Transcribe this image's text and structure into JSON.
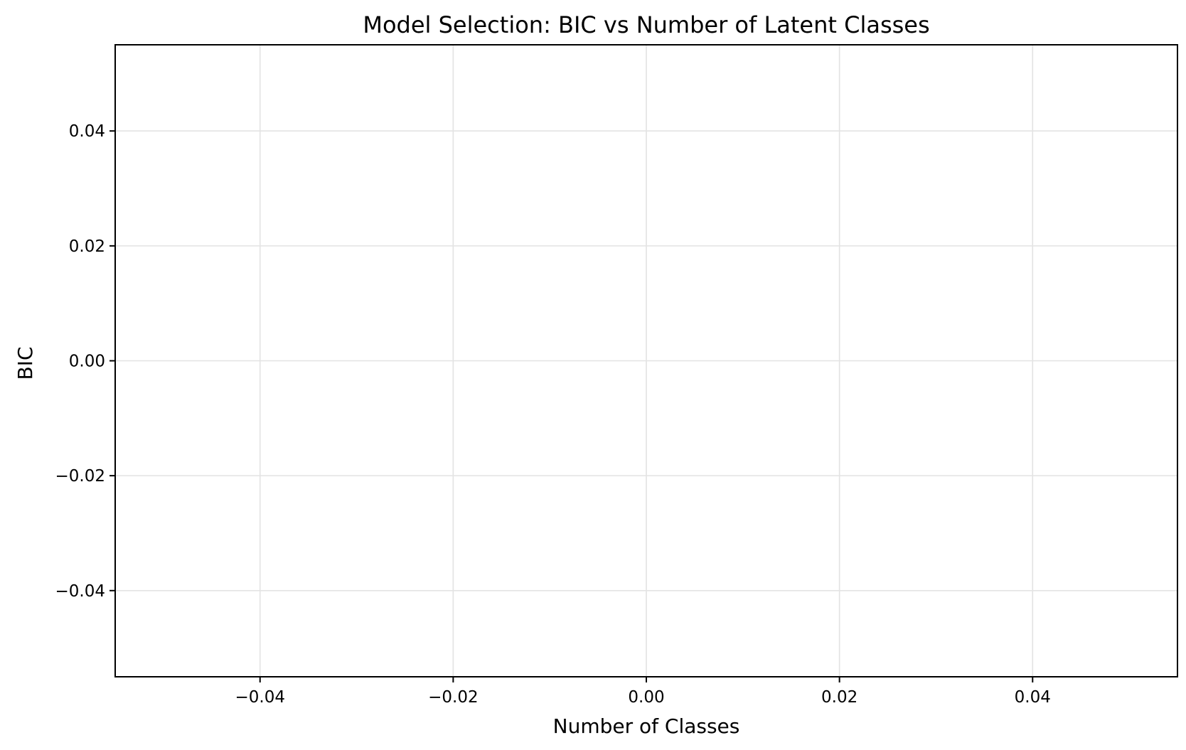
{
  "chart_data": {
    "type": "line",
    "title": "Model Selection: BIC vs Number of Latent Classes",
    "xlabel": "Number of Classes",
    "ylabel": "BIC",
    "xlim": [
      -0.055,
      0.055
    ],
    "ylim": [
      -0.055,
      0.055
    ],
    "x_ticks": [
      -0.04,
      -0.02,
      0.0,
      0.02,
      0.04
    ],
    "y_ticks": [
      -0.04,
      -0.02,
      0.0,
      0.02,
      0.04
    ],
    "x_tick_labels": [
      "−0.04",
      "−0.02",
      "0.00",
      "0.02",
      "0.04"
    ],
    "y_tick_labels": [
      "−0.04",
      "−0.02",
      "0.00",
      "0.02",
      "0.04"
    ],
    "grid": true,
    "series": [
      {
        "x": [],
        "y": []
      }
    ]
  }
}
